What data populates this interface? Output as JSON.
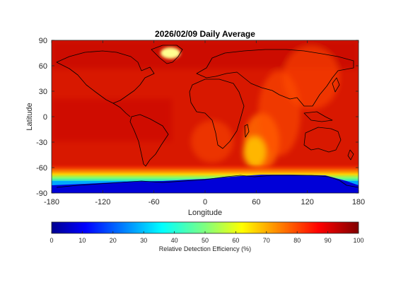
{
  "chart_data": {
    "type": "heatmap",
    "title": "2026/02/09 Daily Average",
    "xlabel": "Longitude",
    "ylabel": "Latitude",
    "xlim": [
      -180,
      180
    ],
    "ylim": [
      -90,
      90
    ],
    "xticks": [
      -180,
      -120,
      -60,
      0,
      60,
      120,
      180
    ],
    "yticks": [
      90,
      60,
      30,
      0,
      -30,
      -60,
      -90
    ],
    "grid": false,
    "projection": "equirectangular world map with coastlines",
    "colorbar": {
      "label": "Relative Detection Efficiency (%)",
      "range": [
        0,
        100
      ],
      "ticks": [
        0,
        10,
        20,
        30,
        40,
        50,
        60,
        70,
        80,
        90,
        100
      ],
      "colormap": "jet",
      "placement": "bottom"
    },
    "field": {
      "dominant_value_range": [
        80,
        100
      ],
      "south_polar_cap_below_lat": -70,
      "south_polar_cap_value": 0,
      "polar_transition_band_lat": [
        -72,
        -58
      ],
      "low_efficiency_plume_center": [
        60,
        -45
      ],
      "greenland_bright_spot": [
        -35,
        68
      ]
    }
  }
}
